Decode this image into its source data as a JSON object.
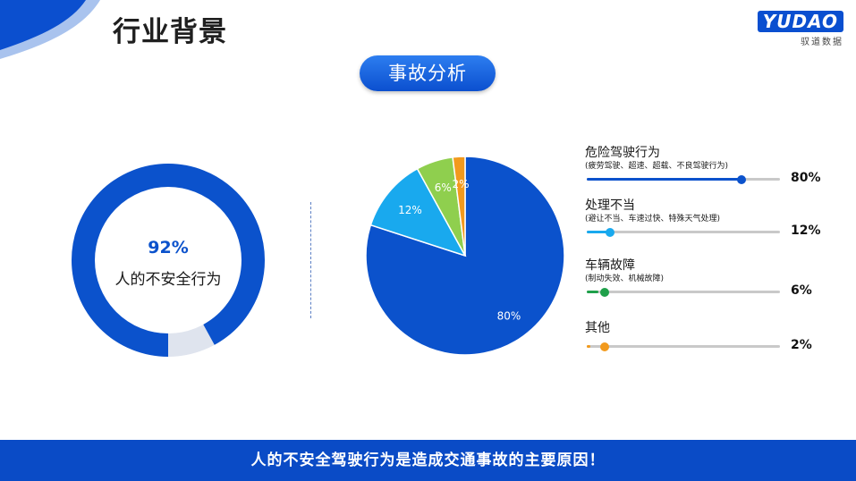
{
  "header": {
    "title": "行业背景"
  },
  "logo": {
    "mark": "YUDAO",
    "subtitle": "驭道数据"
  },
  "section_badge": "事故分析",
  "donut": {
    "value": 92,
    "percent_label": "92%",
    "label": "人的不安全行为",
    "color": "#0b52cc",
    "rest_color": "#dfe4ee"
  },
  "chart_data": {
    "type": "pie",
    "slices": [
      {
        "name": "危险驾驶行为",
        "value": 80,
        "label": "80%",
        "color": "#0b52cc"
      },
      {
        "name": "处理不当",
        "value": 12,
        "label": "12%",
        "color": "#19a9ee"
      },
      {
        "name": "车辆故障",
        "value": 6,
        "label": "6%",
        "color": "#8fcf4e"
      },
      {
        "name": "其他",
        "value": 2,
        "label": "2%",
        "color": "#f29a1d"
      }
    ]
  },
  "legend": [
    {
      "name": "危险驾驶行为",
      "desc": "(疲劳驾驶、超速、超载、不良驾驶行为)",
      "value": 80,
      "value_label": "80%",
      "color": "#0b52cc"
    },
    {
      "name": "处理不当",
      "desc": "(避让不当、车速过快、特殊天气处理)",
      "value": 12,
      "value_label": "12%",
      "color": "#19a9ee"
    },
    {
      "name": "车辆故障",
      "desc": "(制动失效、机械故障)",
      "value": 6,
      "value_label": "6%",
      "color": "#1fa04a"
    },
    {
      "name": "其他",
      "desc": "",
      "value": 2,
      "value_label": "2%",
      "color": "#f29a1d"
    }
  ],
  "footer": {
    "text": "人的不安全驾驶行为是造成交通事故的主要原因！"
  }
}
